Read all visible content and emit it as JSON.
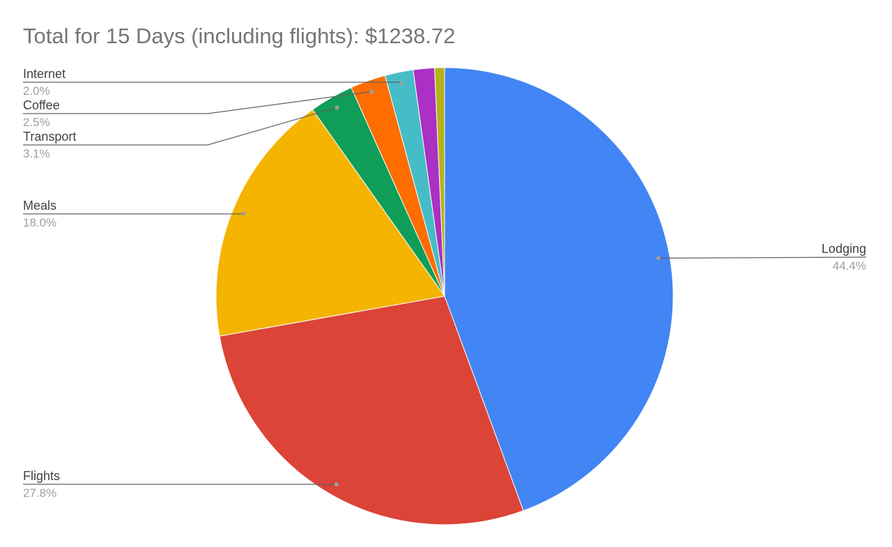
{
  "chart_data": {
    "type": "pie",
    "title": "Total for 15 Days (including flights): $1238.72",
    "categories": [
      "Lodging",
      "Flights",
      "Meals",
      "Transport",
      "Coffee",
      "Internet",
      null,
      null
    ],
    "values": [
      44.4,
      27.8,
      18.0,
      3.1,
      2.5,
      2.0,
      1.5,
      0.7
    ],
    "value_labels": [
      "44.4%",
      "27.8%",
      "18.0%",
      "3.1%",
      "2.5%",
      "2.0%",
      null,
      null
    ],
    "colors": [
      "#4285f4",
      "#db4437",
      "#f4b400",
      "#0f9d58",
      "#ff6d01",
      "#46bdc6",
      "#ab30c4",
      "#b5b31a"
    ]
  }
}
